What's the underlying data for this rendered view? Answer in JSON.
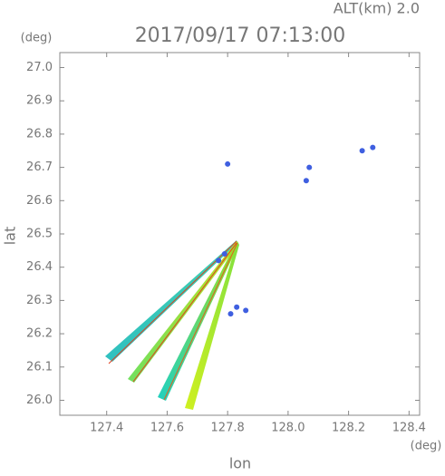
{
  "chart_data": {
    "type": "scatter",
    "title": "2017/09/17 07:13:00",
    "annotation": "ALT(km) 2.0",
    "x_unit": "(deg)",
    "y_unit": "(deg)",
    "x_label": "lon",
    "y_label": "lat",
    "xlim": [
      127.245,
      128.435
    ],
    "ylim": [
      25.955,
      27.045
    ],
    "xticks": [
      127.4,
      127.6,
      127.8,
      {
        "value": 128,
        "label": "128.0"
      },
      128.2,
      128.4
    ],
    "yticks": [
      {
        "value": 26,
        "label": "26.0"
      },
      26.1,
      26.2,
      26.3,
      26.4,
      26.5,
      26.6,
      26.7,
      26.8,
      26.9,
      {
        "value": 27,
        "label": "27.0"
      }
    ],
    "series": [
      {
        "color": "#3f5fe0",
        "x": [
          127.8,
          128.28,
          128.245,
          128.07,
          128.06,
          127.81,
          127.86,
          127.83,
          127.77,
          127.79
        ],
        "y": [
          26.71,
          26.76,
          26.75,
          26.7,
          26.66,
          26.26,
          26.27,
          26.28,
          26.42,
          26.44
        ]
      }
    ]
  }
}
